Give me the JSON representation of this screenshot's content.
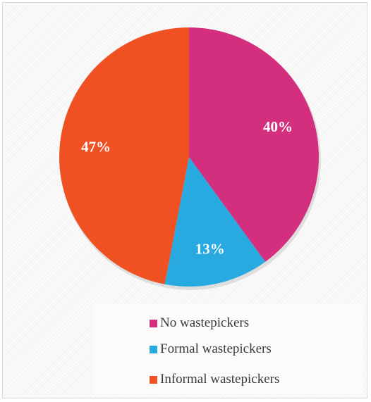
{
  "chart_data": {
    "type": "pie",
    "title": "",
    "categories": [
      "No wastepickers",
      "Formal wastepickers",
      "Informal wastepickers"
    ],
    "values": [
      40,
      13,
      47
    ],
    "labels": [
      "40%",
      "13%",
      "47%"
    ],
    "colors": [
      "#D42E7E",
      "#28A9E0",
      "#F05122"
    ],
    "legend_position": "bottom-right",
    "start_angle_deg": 0,
    "direction": "clockwise"
  }
}
